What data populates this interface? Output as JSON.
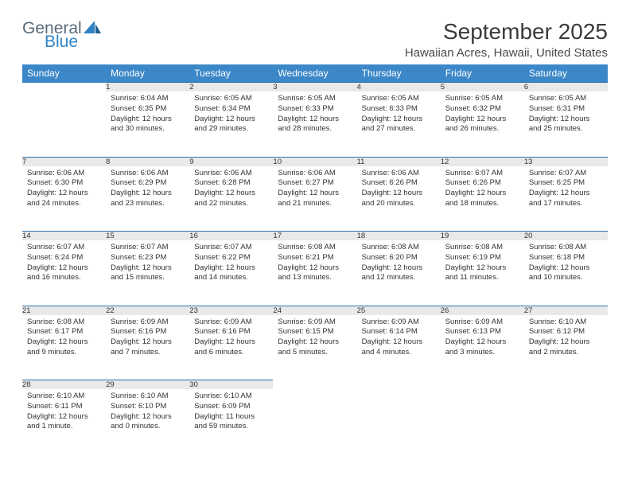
{
  "brand": {
    "general": "General",
    "blue": "Blue"
  },
  "title": "September 2025",
  "location": "Hawaiian Acres, Hawaii, United States",
  "colors": {
    "header_bg": "#3b87c8",
    "header_text": "#ffffff",
    "daynum_bg": "#e9e9e9",
    "border_top": "#2f6ea8",
    "logo_blue": "#2f83c5",
    "logo_gray": "#5a6b7a"
  },
  "weekdays": [
    "Sunday",
    "Monday",
    "Tuesday",
    "Wednesday",
    "Thursday",
    "Friday",
    "Saturday"
  ],
  "weeks": [
    [
      null,
      {
        "n": "1",
        "sr": "Sunrise: 6:04 AM",
        "ss": "Sunset: 6:35 PM",
        "dl": "Daylight: 12 hours and 30 minutes."
      },
      {
        "n": "2",
        "sr": "Sunrise: 6:05 AM",
        "ss": "Sunset: 6:34 PM",
        "dl": "Daylight: 12 hours and 29 minutes."
      },
      {
        "n": "3",
        "sr": "Sunrise: 6:05 AM",
        "ss": "Sunset: 6:33 PM",
        "dl": "Daylight: 12 hours and 28 minutes."
      },
      {
        "n": "4",
        "sr": "Sunrise: 6:05 AM",
        "ss": "Sunset: 6:33 PM",
        "dl": "Daylight: 12 hours and 27 minutes."
      },
      {
        "n": "5",
        "sr": "Sunrise: 6:05 AM",
        "ss": "Sunset: 6:32 PM",
        "dl": "Daylight: 12 hours and 26 minutes."
      },
      {
        "n": "6",
        "sr": "Sunrise: 6:05 AM",
        "ss": "Sunset: 6:31 PM",
        "dl": "Daylight: 12 hours and 25 minutes."
      }
    ],
    [
      {
        "n": "7",
        "sr": "Sunrise: 6:06 AM",
        "ss": "Sunset: 6:30 PM",
        "dl": "Daylight: 12 hours and 24 minutes."
      },
      {
        "n": "8",
        "sr": "Sunrise: 6:06 AM",
        "ss": "Sunset: 6:29 PM",
        "dl": "Daylight: 12 hours and 23 minutes."
      },
      {
        "n": "9",
        "sr": "Sunrise: 6:06 AM",
        "ss": "Sunset: 6:28 PM",
        "dl": "Daylight: 12 hours and 22 minutes."
      },
      {
        "n": "10",
        "sr": "Sunrise: 6:06 AM",
        "ss": "Sunset: 6:27 PM",
        "dl": "Daylight: 12 hours and 21 minutes."
      },
      {
        "n": "11",
        "sr": "Sunrise: 6:06 AM",
        "ss": "Sunset: 6:26 PM",
        "dl": "Daylight: 12 hours and 20 minutes."
      },
      {
        "n": "12",
        "sr": "Sunrise: 6:07 AM",
        "ss": "Sunset: 6:26 PM",
        "dl": "Daylight: 12 hours and 18 minutes."
      },
      {
        "n": "13",
        "sr": "Sunrise: 6:07 AM",
        "ss": "Sunset: 6:25 PM",
        "dl": "Daylight: 12 hours and 17 minutes."
      }
    ],
    [
      {
        "n": "14",
        "sr": "Sunrise: 6:07 AM",
        "ss": "Sunset: 6:24 PM",
        "dl": "Daylight: 12 hours and 16 minutes."
      },
      {
        "n": "15",
        "sr": "Sunrise: 6:07 AM",
        "ss": "Sunset: 6:23 PM",
        "dl": "Daylight: 12 hours and 15 minutes."
      },
      {
        "n": "16",
        "sr": "Sunrise: 6:07 AM",
        "ss": "Sunset: 6:22 PM",
        "dl": "Daylight: 12 hours and 14 minutes."
      },
      {
        "n": "17",
        "sr": "Sunrise: 6:08 AM",
        "ss": "Sunset: 6:21 PM",
        "dl": "Daylight: 12 hours and 13 minutes."
      },
      {
        "n": "18",
        "sr": "Sunrise: 6:08 AM",
        "ss": "Sunset: 6:20 PM",
        "dl": "Daylight: 12 hours and 12 minutes."
      },
      {
        "n": "19",
        "sr": "Sunrise: 6:08 AM",
        "ss": "Sunset: 6:19 PM",
        "dl": "Daylight: 12 hours and 11 minutes."
      },
      {
        "n": "20",
        "sr": "Sunrise: 6:08 AM",
        "ss": "Sunset: 6:18 PM",
        "dl": "Daylight: 12 hours and 10 minutes."
      }
    ],
    [
      {
        "n": "21",
        "sr": "Sunrise: 6:08 AM",
        "ss": "Sunset: 6:17 PM",
        "dl": "Daylight: 12 hours and 9 minutes."
      },
      {
        "n": "22",
        "sr": "Sunrise: 6:09 AM",
        "ss": "Sunset: 6:16 PM",
        "dl": "Daylight: 12 hours and 7 minutes."
      },
      {
        "n": "23",
        "sr": "Sunrise: 6:09 AM",
        "ss": "Sunset: 6:16 PM",
        "dl": "Daylight: 12 hours and 6 minutes."
      },
      {
        "n": "24",
        "sr": "Sunrise: 6:09 AM",
        "ss": "Sunset: 6:15 PM",
        "dl": "Daylight: 12 hours and 5 minutes."
      },
      {
        "n": "25",
        "sr": "Sunrise: 6:09 AM",
        "ss": "Sunset: 6:14 PM",
        "dl": "Daylight: 12 hours and 4 minutes."
      },
      {
        "n": "26",
        "sr": "Sunrise: 6:09 AM",
        "ss": "Sunset: 6:13 PM",
        "dl": "Daylight: 12 hours and 3 minutes."
      },
      {
        "n": "27",
        "sr": "Sunrise: 6:10 AM",
        "ss": "Sunset: 6:12 PM",
        "dl": "Daylight: 12 hours and 2 minutes."
      }
    ],
    [
      {
        "n": "28",
        "sr": "Sunrise: 6:10 AM",
        "ss": "Sunset: 6:11 PM",
        "dl": "Daylight: 12 hours and 1 minute."
      },
      {
        "n": "29",
        "sr": "Sunrise: 6:10 AM",
        "ss": "Sunset: 6:10 PM",
        "dl": "Daylight: 12 hours and 0 minutes."
      },
      {
        "n": "30",
        "sr": "Sunrise: 6:10 AM",
        "ss": "Sunset: 6:09 PM",
        "dl": "Daylight: 11 hours and 59 minutes."
      },
      null,
      null,
      null,
      null
    ]
  ]
}
